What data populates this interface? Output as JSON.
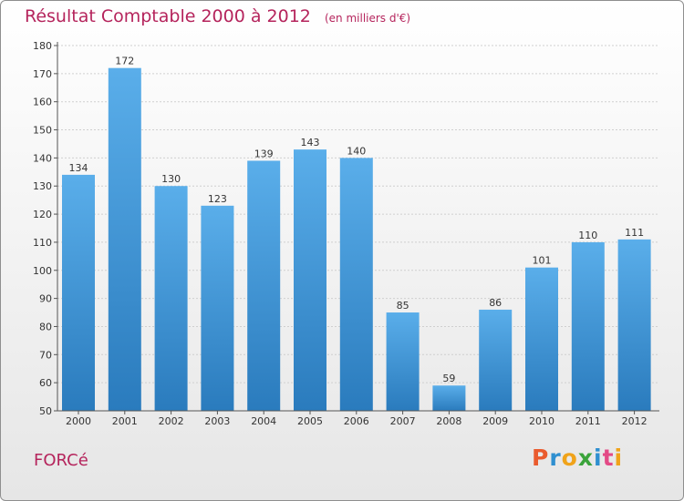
{
  "chart_data": {
    "type": "bar",
    "title": "Résultat Comptable 2000 à 2012",
    "subtitle": "(en milliers d'€)",
    "categories": [
      "2000",
      "2001",
      "2002",
      "2003",
      "2004",
      "2005",
      "2006",
      "2007",
      "2008",
      "2009",
      "2010",
      "2011",
      "2012"
    ],
    "values": [
      134,
      172,
      130,
      123,
      139,
      143,
      140,
      85,
      59,
      86,
      101,
      110,
      111
    ],
    "ylim": [
      50,
      180
    ],
    "yticks": [
      50,
      60,
      70,
      80,
      90,
      100,
      110,
      120,
      130,
      140,
      150,
      160,
      170,
      180
    ],
    "xlabel": "",
    "ylabel": "",
    "grid": true,
    "legend": "none",
    "colors": {
      "bar_top": "#5aaeea",
      "bar_bottom": "#2a7bbd",
      "grid": "#cfcfcf",
      "label": "#333333"
    }
  },
  "footer": {
    "commune": "FORCé",
    "brand_letters": [
      "P",
      "r",
      "o",
      "x",
      "i",
      "t",
      "i"
    ],
    "brand_colors": [
      "#ea5b2e",
      "#2f8fd0",
      "#f0a31a",
      "#3aa33a",
      "#2f8fd0",
      "#e34a86",
      "#f0a31a"
    ]
  }
}
